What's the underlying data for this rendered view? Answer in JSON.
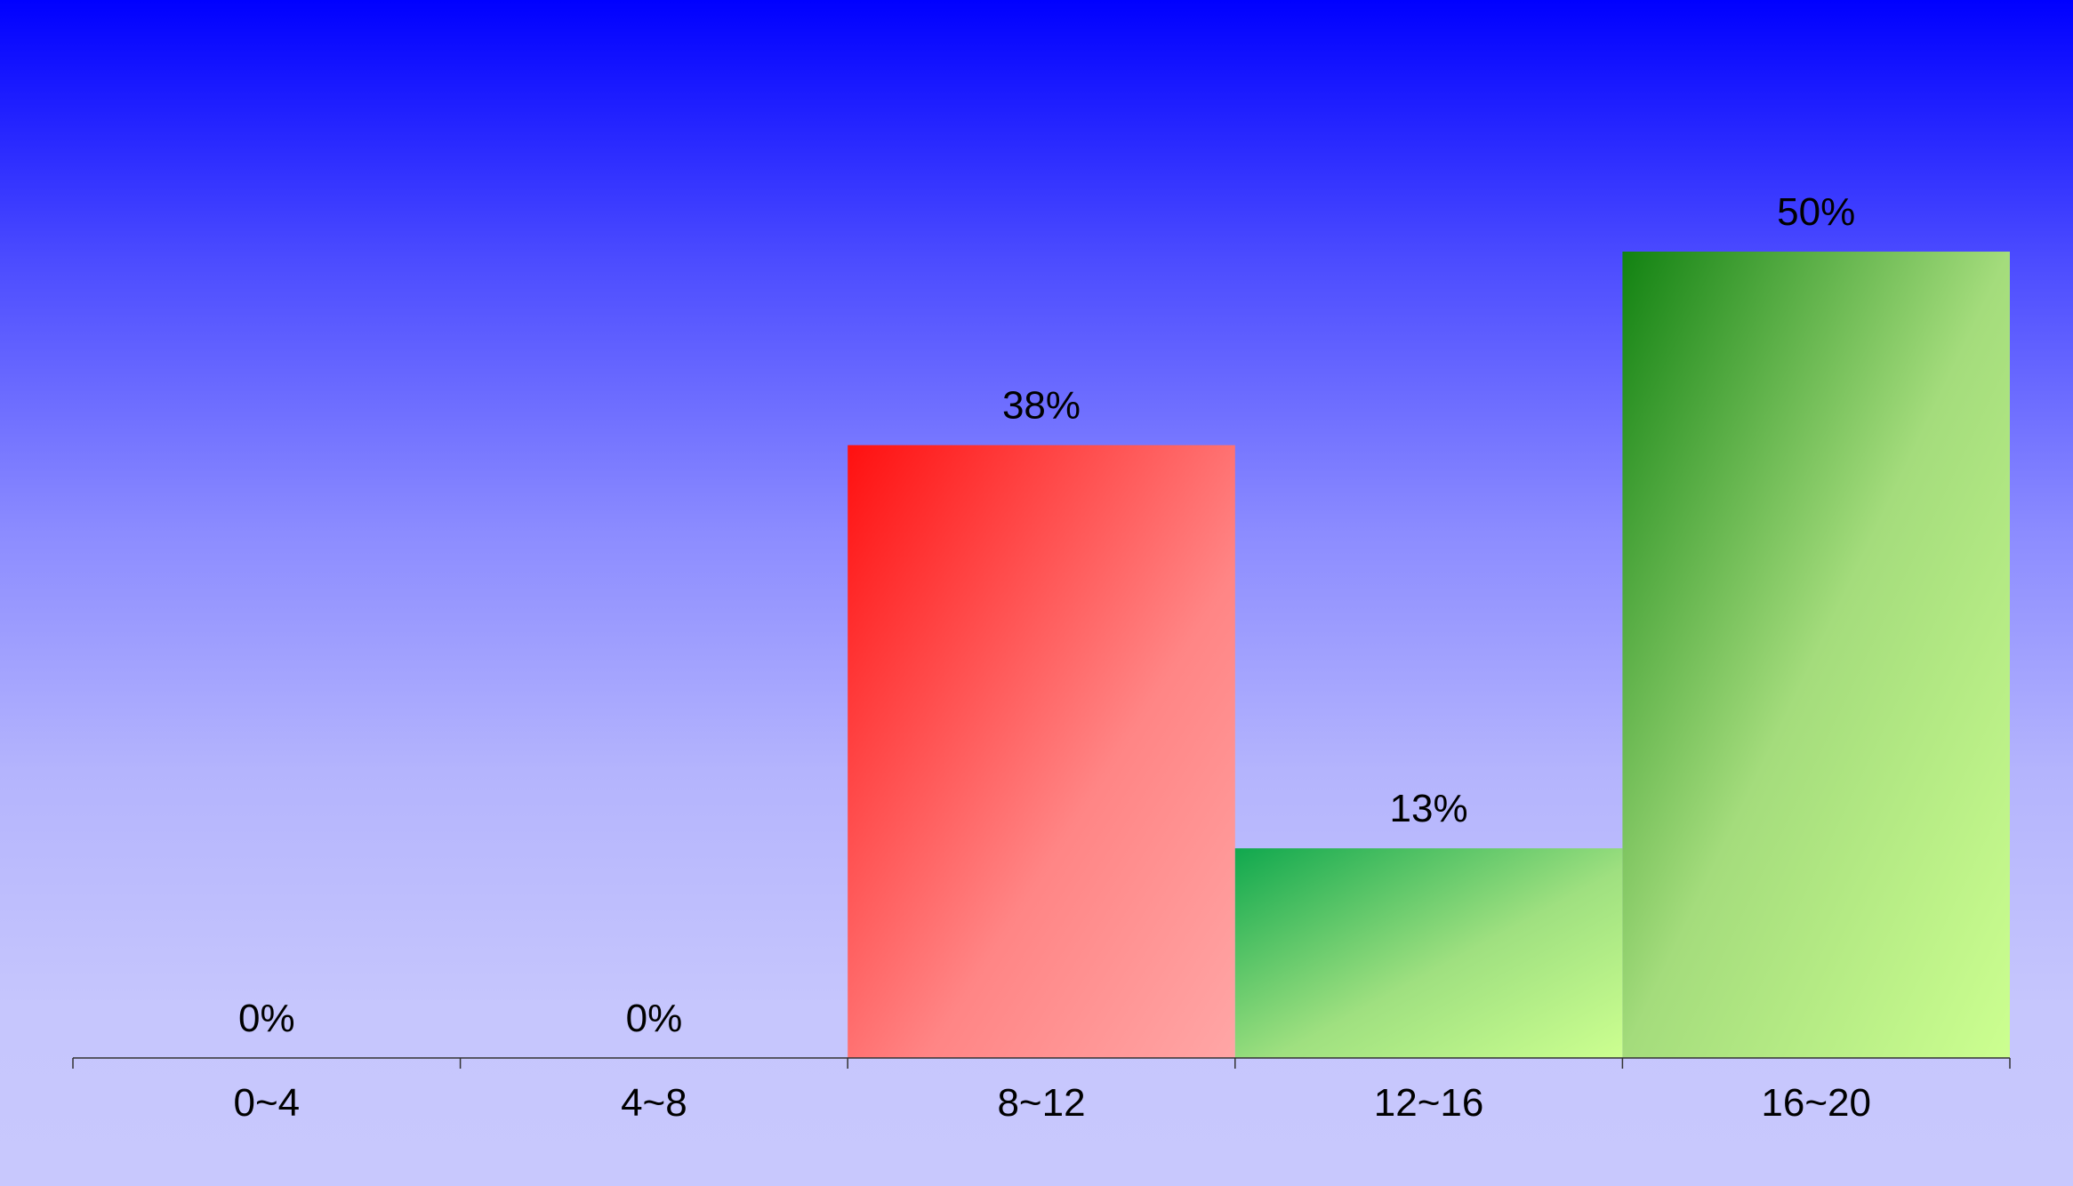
{
  "chart_data": {
    "type": "bar",
    "categories": [
      "0~4",
      "4~8",
      "8~12",
      "12~16",
      "16~20"
    ],
    "values": [
      0,
      0,
      38,
      13,
      50
    ],
    "data_labels": [
      "0%",
      "0%",
      "38%",
      "13%",
      "50%"
    ],
    "title": "",
    "xlabel": "",
    "ylabel": "",
    "ylim": [
      0,
      50
    ],
    "grid": false,
    "legend": "none",
    "colors": {
      "background_top": "#0000ff",
      "background_bottom": "#c8c8fd",
      "bar_8_12": [
        "#ff1010",
        "#ffa3a3"
      ],
      "bar_12_16": [
        "#14a850",
        "#ccff90"
      ],
      "bar_16_20": [
        "#128212",
        "#ccff90"
      ],
      "axis": "#333333"
    }
  }
}
